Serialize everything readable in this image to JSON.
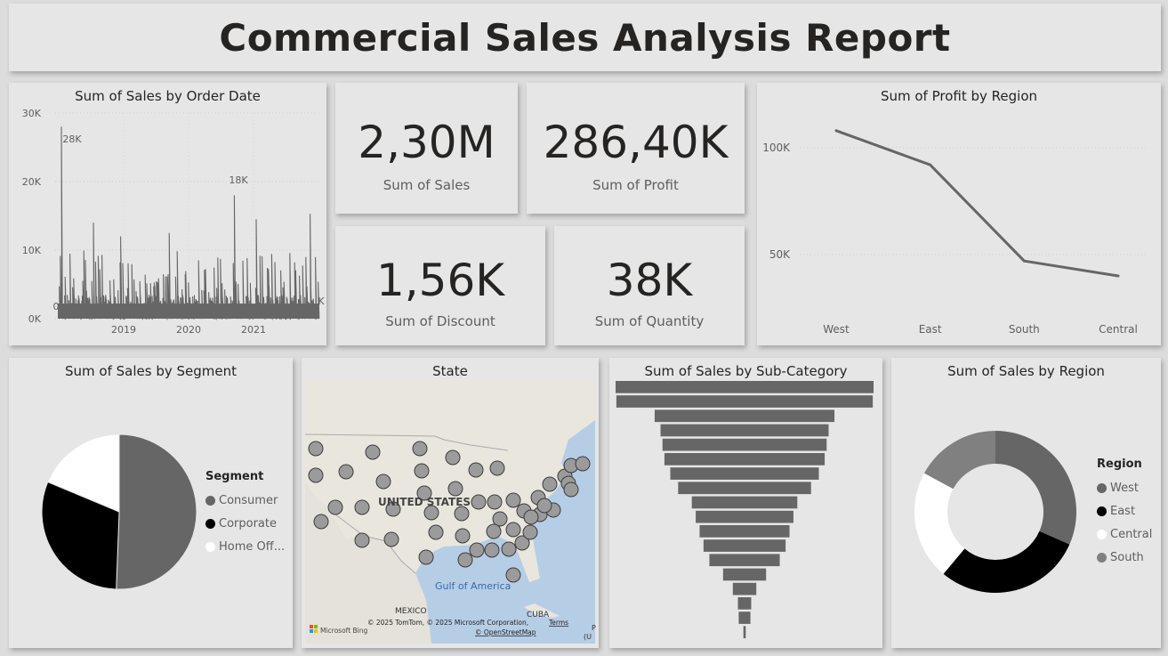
{
  "report": {
    "title": "Commercial Sales Analysis Report"
  },
  "kpis": {
    "sales": {
      "value": "2,30M",
      "label": "Sum of Sales"
    },
    "profit": {
      "value": "286,40K",
      "label": "Sum of Profit"
    },
    "discount": {
      "value": "1,56K",
      "label": "Sum of Discount"
    },
    "quantity": {
      "value": "38K",
      "label": "Sum of Quantity"
    }
  },
  "map": {
    "title": "State",
    "labels": {
      "country": "UNITED STATES",
      "gulf": "Gulf of America",
      "mexico": "MEXICO",
      "cuba": "CUBA"
    },
    "attribution": "© 2025 TomTom, © 2025 Microsoft Corporation,",
    "terms": "Terms",
    "osm": "© OpenStreetMap",
    "logo": "Microsoft Bing",
    "edge_label": "(U",
    "edge_label_p": "P"
  },
  "chart_data": [
    {
      "id": "sales_by_date",
      "type": "area",
      "title": "Sum of Sales by Order Date",
      "yticks": [
        "30K",
        "20K",
        "10K",
        "0K"
      ],
      "ylim": [
        0,
        30000
      ],
      "xticks": [
        "2019",
        "2020",
        "2021"
      ],
      "annotations": [
        "28K",
        "18K",
        "0",
        "K"
      ],
      "grid": true,
      "approx_daily_peaks": [
        {
          "x": "2018-01",
          "y": 28000
        },
        {
          "x": "2018-07",
          "y": 14000
        },
        {
          "x": "2018-12",
          "y": 12000
        },
        {
          "x": "2019-09",
          "y": 12500
        },
        {
          "x": "2020-09",
          "y": 18000
        },
        {
          "x": "2021-01",
          "y": 14500
        },
        {
          "x": "2021-11",
          "y": 15300
        },
        {
          "x": "2021-12",
          "y": 9000
        }
      ]
    },
    {
      "id": "profit_by_region",
      "type": "line",
      "title": "Sum of Profit by Region",
      "categories": [
        "West",
        "East",
        "South",
        "Central"
      ],
      "values": [
        108000,
        92000,
        47000,
        40000
      ],
      "yticks": [
        "100K",
        "50K"
      ],
      "ylim": [
        20000,
        120000
      ],
      "grid": true
    },
    {
      "id": "sales_by_segment",
      "type": "pie",
      "title": "Sum of Sales by Segment",
      "legend_title": "Segment",
      "legend_position": "right",
      "categories": [
        "Consumer",
        "Corporate",
        "Home Off..."
      ],
      "values": [
        50.6,
        30.7,
        18.7
      ],
      "colors": [
        "#666666",
        "#000000",
        "#ffffff"
      ]
    },
    {
      "id": "sales_by_subcategory",
      "type": "bar",
      "orientation": "funnel",
      "title": "Sum of Sales by Sub-Category",
      "values": [
        330000,
        328000,
        230000,
        215000,
        210000,
        205000,
        190000,
        170000,
        135000,
        125000,
        115000,
        105000,
        90000,
        55000,
        30000,
        17000,
        15000,
        3000
      ]
    },
    {
      "id": "sales_by_region",
      "type": "pie",
      "subtype": "donut",
      "title": "Sum of Sales by Region",
      "legend_title": "Region",
      "legend_position": "right",
      "categories": [
        "West",
        "East",
        "Central",
        "South"
      ],
      "values": [
        31.6,
        29.5,
        21.8,
        17.1
      ],
      "colors": [
        "#666666",
        "#000000",
        "#ffffff",
        "#808080"
      ]
    }
  ]
}
